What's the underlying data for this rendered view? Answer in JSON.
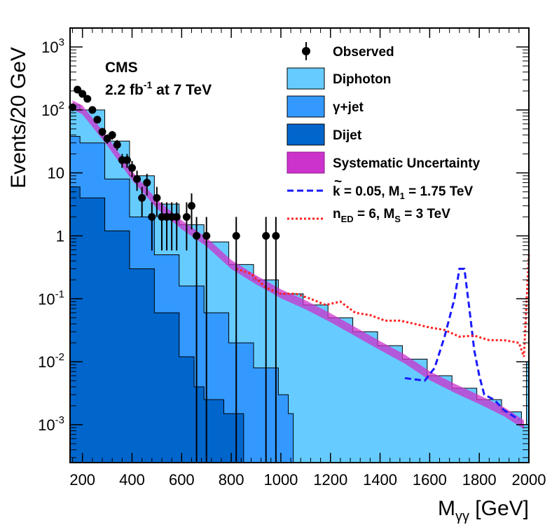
{
  "chart_data": {
    "type": "histogram",
    "ylabel": "Events/20 GeV",
    "xlabel_main": "M",
    "xlabel_sub": "γγ",
    "xlabel_unit": " [GeV]",
    "experiment": "CMS",
    "lumi_value": "2.2 fb",
    "lumi_exp": "-1",
    "lumi_energy": " at 7 TeV",
    "xlim": [
      150,
      2000
    ],
    "ylim": [
      0.00025,
      2000
    ],
    "log_y": true,
    "bin_width": 20,
    "x_ticks": [
      200,
      400,
      600,
      800,
      1000,
      1200,
      1400,
      1600,
      1800,
      2000
    ],
    "y_ticks": [
      {
        "value": 0.001,
        "mant": "10",
        "exp": "-3"
      },
      {
        "value": 0.01,
        "mant": "10",
        "exp": "-2"
      },
      {
        "value": 0.1,
        "mant": "10",
        "exp": "-1"
      },
      {
        "value": 1,
        "mant": "1",
        "exp": ""
      },
      {
        "value": 10,
        "mant": "10",
        "exp": ""
      },
      {
        "value": 100,
        "mant": "10",
        "exp": "2"
      },
      {
        "value": 1000,
        "mant": "10",
        "exp": "3"
      }
    ],
    "legend": {
      "observed": "Observed",
      "diphoton": "Diphoton",
      "gjet": "γ+jet",
      "dijet": "Dijet",
      "syst": "Systematic Uncertainty",
      "rs": "k = 0.05, M",
      "rs_sub": "1",
      "rs_tail": " = 1.75 TeV",
      "rs_tilde": "~",
      "add_main": "n",
      "add_sub1": "ED",
      "add_mid": " = 6, M",
      "add_sub2": "S",
      "add_tail": " = 3 TeV"
    },
    "colors": {
      "diphoton": "#66ccff",
      "gjet": "#3399ff",
      "dijet": "#0066cc",
      "syst": "#cc33cc",
      "rs": "#1a1aff",
      "add": "#ff2222"
    },
    "observed": [
      {
        "x": 160,
        "y": 110
      },
      {
        "x": 180,
        "y": 210
      },
      {
        "x": 200,
        "y": 180
      },
      {
        "x": 220,
        "y": 150
      },
      {
        "x": 240,
        "y": 100
      },
      {
        "x": 260,
        "y": 70
      },
      {
        "x": 280,
        "y": 45
      },
      {
        "x": 300,
        "y": 35
      },
      {
        "x": 320,
        "y": 40
      },
      {
        "x": 340,
        "y": 28
      },
      {
        "x": 360,
        "y": 16
      },
      {
        "x": 380,
        "y": 16
      },
      {
        "x": 400,
        "y": 12
      },
      {
        "x": 420,
        "y": 8
      },
      {
        "x": 440,
        "y": 4
      },
      {
        "x": 460,
        "y": 7
      },
      {
        "x": 480,
        "y": 2
      },
      {
        "x": 500,
        "y": 4
      },
      {
        "x": 520,
        "y": 2
      },
      {
        "x": 540,
        "y": 2
      },
      {
        "x": 560,
        "y": 2
      },
      {
        "x": 580,
        "y": 2
      },
      {
        "x": 620,
        "y": 2
      },
      {
        "x": 640,
        "y": 3
      },
      {
        "x": 660,
        "y": 1
      },
      {
        "x": 700,
        "y": 1
      },
      {
        "x": 820,
        "y": 1
      },
      {
        "x": 940,
        "y": 1
      },
      {
        "x": 980,
        "y": 1
      }
    ],
    "total_bg": [
      {
        "x": 160,
        "y": 120
      },
      {
        "x": 200,
        "y": 100
      },
      {
        "x": 300,
        "y": 32
      },
      {
        "x": 400,
        "y": 9
      },
      {
        "x": 500,
        "y": 3.2
      },
      {
        "x": 600,
        "y": 1.5
      },
      {
        "x": 700,
        "y": 0.8
      },
      {
        "x": 800,
        "y": 0.35
      },
      {
        "x": 900,
        "y": 0.2
      },
      {
        "x": 1000,
        "y": 0.12
      },
      {
        "x": 1100,
        "y": 0.08
      },
      {
        "x": 1200,
        "y": 0.05
      },
      {
        "x": 1300,
        "y": 0.03
      },
      {
        "x": 1400,
        "y": 0.018
      },
      {
        "x": 1500,
        "y": 0.011
      },
      {
        "x": 1600,
        "y": 0.006
      },
      {
        "x": 1700,
        "y": 0.0038
      },
      {
        "x": 1800,
        "y": 0.0025
      },
      {
        "x": 1900,
        "y": 0.0016
      },
      {
        "x": 1980,
        "y": 0.001
      },
      {
        "x": 2000,
        "y": 0.01
      }
    ],
    "gjet_dijet": [
      {
        "x": 160,
        "y": 38
      },
      {
        "x": 200,
        "y": 30
      },
      {
        "x": 300,
        "y": 8
      },
      {
        "x": 400,
        "y": 2
      },
      {
        "x": 500,
        "y": 0.5
      },
      {
        "x": 600,
        "y": 0.16
      },
      {
        "x": 700,
        "y": 0.06
      },
      {
        "x": 800,
        "y": 0.02
      },
      {
        "x": 900,
        "y": 0.008
      },
      {
        "x": 1000,
        "y": 0.003
      },
      {
        "x": 1040,
        "y": 0.0015
      },
      {
        "x": 1060,
        "y": 0.0002
      }
    ],
    "dijet": [
      {
        "x": 160,
        "y": 6
      },
      {
        "x": 200,
        "y": 4
      },
      {
        "x": 300,
        "y": 1.2
      },
      {
        "x": 400,
        "y": 0.3
      },
      {
        "x": 500,
        "y": 0.06
      },
      {
        "x": 600,
        "y": 0.012
      },
      {
        "x": 660,
        "y": 0.004
      },
      {
        "x": 700,
        "y": 0.0025
      },
      {
        "x": 780,
        "y": 0.0015
      },
      {
        "x": 840,
        "y": 0.0015
      },
      {
        "x": 860,
        "y": 0.0002
      }
    ],
    "rs_signal": [
      {
        "x": 1500,
        "y": 0.0055
      },
      {
        "x": 1580,
        "y": 0.005
      },
      {
        "x": 1620,
        "y": 0.008
      },
      {
        "x": 1660,
        "y": 0.025
      },
      {
        "x": 1700,
        "y": 0.1
      },
      {
        "x": 1720,
        "y": 0.3
      },
      {
        "x": 1740,
        "y": 0.3
      },
      {
        "x": 1760,
        "y": 0.07
      },
      {
        "x": 1780,
        "y": 0.015
      },
      {
        "x": 1800,
        "y": 0.006
      },
      {
        "x": 1820,
        "y": 0.003
      },
      {
        "x": 1860,
        "y": 0.0025
      },
      {
        "x": 1900,
        "y": 0.0017
      },
      {
        "x": 1960,
        "y": 0.0012
      }
    ],
    "add_signal": [
      {
        "x": 820,
        "y": 0.3
      },
      {
        "x": 880,
        "y": 0.25
      },
      {
        "x": 940,
        "y": 0.15
      },
      {
        "x": 1000,
        "y": 0.12
      },
      {
        "x": 1060,
        "y": 0.12
      },
      {
        "x": 1120,
        "y": 0.1
      },
      {
        "x": 1180,
        "y": 0.08
      },
      {
        "x": 1240,
        "y": 0.09
      },
      {
        "x": 1300,
        "y": 0.06
      },
      {
        "x": 1360,
        "y": 0.055
      },
      {
        "x": 1420,
        "y": 0.045
      },
      {
        "x": 1480,
        "y": 0.045
      },
      {
        "x": 1540,
        "y": 0.04
      },
      {
        "x": 1600,
        "y": 0.035
      },
      {
        "x": 1660,
        "y": 0.032
      },
      {
        "x": 1720,
        "y": 0.025
      },
      {
        "x": 1780,
        "y": 0.026
      },
      {
        "x": 1840,
        "y": 0.022
      },
      {
        "x": 1900,
        "y": 0.022
      },
      {
        "x": 1960,
        "y": 0.02
      },
      {
        "x": 1980,
        "y": 0.012
      },
      {
        "x": 2000,
        "y": 0.5
      }
    ]
  }
}
